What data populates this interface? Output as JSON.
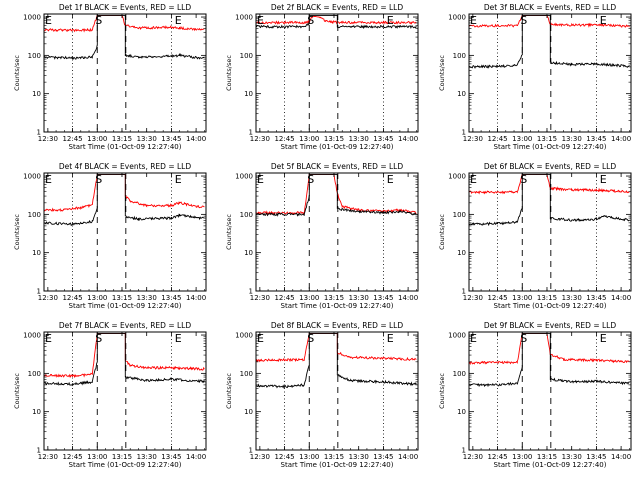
{
  "figure": {
    "xtick_labels": [
      "12:30",
      "12:45",
      "13:00",
      "13:15",
      "13:30",
      "13:45",
      "14:00"
    ],
    "xlabel": "Start Time (01-Oct-09 12:27:40)",
    "ylabel": "Counts/sec",
    "ytick_labels": [
      "1",
      "10",
      "100",
      "1000"
    ],
    "marker_labels": [
      "E",
      "S",
      "E"
    ]
  },
  "chart_data": [
    {
      "type": "line",
      "title": "Det 1f BLACK = Events, RED = LLD",
      "xlabel": "Start Time (01-Oct-09 12:27:40)",
      "ylabel": "Counts/sec",
      "yscale": "log",
      "ylim": [
        1,
        1200
      ],
      "xlim": [
        "12:27:40",
        "14:06"
      ],
      "series": [
        {
          "color": "#ff0000",
          "points": [
            [
              "12:28",
              470
            ],
            [
              "12:45",
              450
            ],
            [
              "12:57",
              460
            ],
            [
              "13:00",
              1100
            ],
            [
              "13:15",
              1100
            ],
            [
              "13:17",
              600
            ],
            [
              "13:25",
              520
            ],
            [
              "13:45",
              540
            ],
            [
              "13:50",
              520
            ],
            [
              "14:00",
              470
            ],
            [
              "14:05",
              460
            ]
          ]
        },
        {
          "color": "#000000",
          "points": [
            [
              "12:28",
              90
            ],
            [
              "12:45",
              85
            ],
            [
              "12:57",
              90
            ],
            [
              "13:00",
              180
            ],
            [
              "13:00",
              1100
            ],
            [
              "13:17",
              1100
            ],
            [
              "13:17",
              100
            ],
            [
              "13:25",
              90
            ],
            [
              "13:45",
              95
            ],
            [
              "13:50",
              100
            ],
            [
              "14:00",
              88
            ],
            [
              "14:05",
              86
            ]
          ]
        }
      ]
    },
    {
      "type": "line",
      "title": "Det 2f BLACK = Events, RED = LLD",
      "xlabel": "Start Time (01-Oct-09 12:27:40)",
      "ylabel": "Counts/sec",
      "yscale": "log",
      "ylim": [
        1,
        1200
      ],
      "xlim": [
        "12:27:40",
        "14:06"
      ],
      "series": [
        {
          "color": "#ff0000",
          "points": [
            [
              "12:28",
              720
            ],
            [
              "12:57",
              720
            ],
            [
              "13:00",
              750
            ],
            [
              "13:02",
              1050
            ],
            [
              "13:06",
              1000
            ],
            [
              "13:10",
              800
            ],
            [
              "13:14",
              750
            ],
            [
              "13:20",
              720
            ],
            [
              "14:05",
              720
            ]
          ]
        },
        {
          "color": "#000000",
          "points": [
            [
              "12:28",
              560
            ],
            [
              "12:57",
              560
            ],
            [
              "13:00",
              700
            ],
            [
              "13:00",
              1100
            ],
            [
              "13:17",
              1100
            ],
            [
              "13:17",
              560
            ],
            [
              "14:05",
              560
            ]
          ]
        }
      ]
    },
    {
      "type": "line",
      "title": "Det 3f BLACK = Events, RED = LLD",
      "xlabel": "Start Time (01-Oct-09 12:27:40)",
      "ylabel": "Counts/sec",
      "yscale": "log",
      "ylim": [
        1,
        1200
      ],
      "xlim": [
        "12:27:40",
        "14:06"
      ],
      "series": [
        {
          "color": "#ff0000",
          "points": [
            [
              "12:28",
              580
            ],
            [
              "12:57",
              600
            ],
            [
              "13:00",
              1100
            ],
            [
              "13:15",
              1100
            ],
            [
              "13:17",
              650
            ],
            [
              "13:30",
              620
            ],
            [
              "13:45",
              620
            ],
            [
              "14:05",
              580
            ]
          ]
        },
        {
          "color": "#000000",
          "points": [
            [
              "12:28",
              50
            ],
            [
              "12:45",
              52
            ],
            [
              "12:57",
              55
            ],
            [
              "13:00",
              110
            ],
            [
              "13:00",
              1100
            ],
            [
              "13:17",
              1100
            ],
            [
              "13:17",
              65
            ],
            [
              "13:30",
              58
            ],
            [
              "13:45",
              60
            ],
            [
              "14:05",
              52
            ]
          ]
        }
      ]
    },
    {
      "type": "line",
      "title": "Det 4f BLACK = Events, RED = LLD",
      "xlabel": "Start Time (01-Oct-09 12:27:40)",
      "ylabel": "Counts/sec",
      "yscale": "log",
      "ylim": [
        1,
        1200
      ],
      "xlim": [
        "12:27:40",
        "14:06"
      ],
      "series": [
        {
          "color": "#ff0000",
          "points": [
            [
              "12:28",
              130
            ],
            [
              "12:40",
              130
            ],
            [
              "12:50",
              150
            ],
            [
              "12:57",
              180
            ],
            [
              "13:00",
              1100
            ],
            [
              "13:17",
              1100
            ],
            [
              "13:17",
              300
            ],
            [
              "13:20",
              220
            ],
            [
              "13:30",
              170
            ],
            [
              "13:45",
              170
            ],
            [
              "13:50",
              200
            ],
            [
              "14:00",
              160
            ],
            [
              "14:05",
              160
            ]
          ]
        },
        {
          "color": "#000000",
          "points": [
            [
              "12:28",
              60
            ],
            [
              "12:45",
              55
            ],
            [
              "12:57",
              65
            ],
            [
              "13:00",
              150
            ],
            [
              "13:00",
              1100
            ],
            [
              "13:17",
              1100
            ],
            [
              "13:17",
              90
            ],
            [
              "13:25",
              75
            ],
            [
              "13:45",
              80
            ],
            [
              "13:50",
              95
            ],
            [
              "14:05",
              78
            ]
          ]
        }
      ]
    },
    {
      "type": "line",
      "title": "Det 5f BLACK = Events, RED = LLD",
      "xlabel": "Start Time (01-Oct-09 12:27:40)",
      "ylabel": "Counts/sec",
      "yscale": "log",
      "ylim": [
        1,
        1200
      ],
      "xlim": [
        "12:27:40",
        "14:06"
      ],
      "series": [
        {
          "color": "#ff0000",
          "points": [
            [
              "12:28",
              110
            ],
            [
              "12:57",
              110
            ],
            [
              "13:00",
              1100
            ],
            [
              "13:15",
              1100
            ],
            [
              "13:17",
              350
            ],
            [
              "13:20",
              160
            ],
            [
              "13:30",
              130
            ],
            [
              "13:45",
              120
            ],
            [
              "13:55",
              130
            ],
            [
              "14:05",
              110
            ]
          ]
        },
        {
          "color": "#000000",
          "points": [
            [
              "12:28",
              100
            ],
            [
              "12:57",
              100
            ],
            [
              "13:00",
              300
            ],
            [
              "13:00",
              1100
            ],
            [
              "13:17",
              1100
            ],
            [
              "13:17",
              140
            ],
            [
              "13:30",
              120
            ],
            [
              "13:45",
              110
            ],
            [
              "13:55",
              120
            ],
            [
              "14:05",
              100
            ]
          ]
        }
      ]
    },
    {
      "type": "line",
      "title": "Det 6f BLACK = Events, RED = LLD",
      "xlabel": "Start Time (01-Oct-09 12:27:40)",
      "ylabel": "Counts/sec",
      "yscale": "log",
      "ylim": [
        1,
        1200
      ],
      "xlim": [
        "12:27:40",
        "14:06"
      ],
      "series": [
        {
          "color": "#ff0000",
          "points": [
            [
              "12:28",
              380
            ],
            [
              "12:57",
              380
            ],
            [
              "13:00",
              1100
            ],
            [
              "13:15",
              1100
            ],
            [
              "13:17",
              480
            ],
            [
              "13:30",
              440
            ],
            [
              "13:45",
              430
            ],
            [
              "14:05",
              390
            ]
          ]
        },
        {
          "color": "#000000",
          "points": [
            [
              "12:28",
              55
            ],
            [
              "12:45",
              58
            ],
            [
              "12:57",
              62
            ],
            [
              "13:00",
              150
            ],
            [
              "13:00",
              1100
            ],
            [
              "13:17",
              1100
            ],
            [
              "13:17",
              80
            ],
            [
              "13:30",
              70
            ],
            [
              "13:45",
              75
            ],
            [
              "13:50",
              90
            ],
            [
              "14:05",
              70
            ]
          ]
        }
      ]
    },
    {
      "type": "line",
      "title": "Det 7f BLACK = Events, RED = LLD",
      "xlabel": "Start Time (01-Oct-09 12:27:40)",
      "ylabel": "Counts/sec",
      "yscale": "log",
      "ylim": [
        1,
        1200
      ],
      "xlim": [
        "12:27:40",
        "14:06"
      ],
      "series": [
        {
          "color": "#ff0000",
          "points": [
            [
              "12:28",
              90
            ],
            [
              "12:45",
              85
            ],
            [
              "12:57",
              95
            ],
            [
              "13:00",
              1100
            ],
            [
              "13:17",
              1100
            ],
            [
              "13:17",
              230
            ],
            [
              "13:20",
              160
            ],
            [
              "13:30",
              140
            ],
            [
              "13:45",
              140
            ],
            [
              "14:05",
              130
            ]
          ]
        },
        {
          "color": "#000000",
          "points": [
            [
              "12:28",
              55
            ],
            [
              "12:45",
              52
            ],
            [
              "12:57",
              60
            ],
            [
              "13:00",
              200
            ],
            [
              "13:00",
              1100
            ],
            [
              "13:17",
              1100
            ],
            [
              "13:17",
              80
            ],
            [
              "13:30",
              65
            ],
            [
              "13:45",
              70
            ],
            [
              "14:05",
              62
            ]
          ]
        }
      ]
    },
    {
      "type": "line",
      "title": "Det 8f BLACK = Events, RED = LLD",
      "xlabel": "Start Time (01-Oct-09 12:27:40)",
      "ylabel": "Counts/sec",
      "yscale": "log",
      "ylim": [
        1,
        1200
      ],
      "xlim": [
        "12:27:40",
        "14:06"
      ],
      "series": [
        {
          "color": "#ff0000",
          "points": [
            [
              "12:28",
              220
            ],
            [
              "12:57",
              230
            ],
            [
              "13:00",
              1100
            ],
            [
              "13:17",
              1100
            ],
            [
              "13:17",
              350
            ],
            [
              "13:25",
              260
            ],
            [
              "13:45",
              250
            ],
            [
              "14:05",
              230
            ]
          ]
        },
        {
          "color": "#000000",
          "points": [
            [
              "12:28",
              48
            ],
            [
              "12:45",
              45
            ],
            [
              "12:57",
              50
            ],
            [
              "13:00",
              170
            ],
            [
              "13:00",
              1100
            ],
            [
              "13:17",
              1100
            ],
            [
              "13:17",
              90
            ],
            [
              "13:25",
              65
            ],
            [
              "13:45",
              60
            ],
            [
              "14:05",
              52
            ]
          ]
        }
      ]
    },
    {
      "type": "line",
      "title": "Det 9f BLACK = Events, RED = LLD",
      "xlabel": "Start Time (01-Oct-09 12:27:40)",
      "ylabel": "Counts/sec",
      "yscale": "log",
      "ylim": [
        1,
        1200
      ],
      "xlim": [
        "12:27:40",
        "14:06"
      ],
      "series": [
        {
          "color": "#ff0000",
          "points": [
            [
              "12:28",
              190
            ],
            [
              "12:57",
              195
            ],
            [
              "13:00",
              1100
            ],
            [
              "13:15",
              1100
            ],
            [
              "13:17",
              320
            ],
            [
              "13:25",
              230
            ],
            [
              "13:45",
              220
            ],
            [
              "14:05",
              200
            ]
          ]
        },
        {
          "color": "#000000",
          "points": [
            [
              "12:28",
              50
            ],
            [
              "12:45",
              50
            ],
            [
              "12:57",
              55
            ],
            [
              "13:00",
              150
            ],
            [
              "13:00",
              1100
            ],
            [
              "13:17",
              1100
            ],
            [
              "13:17",
              70
            ],
            [
              "13:30",
              60
            ],
            [
              "13:45",
              62
            ],
            [
              "14:05",
              55
            ]
          ]
        }
      ]
    }
  ]
}
